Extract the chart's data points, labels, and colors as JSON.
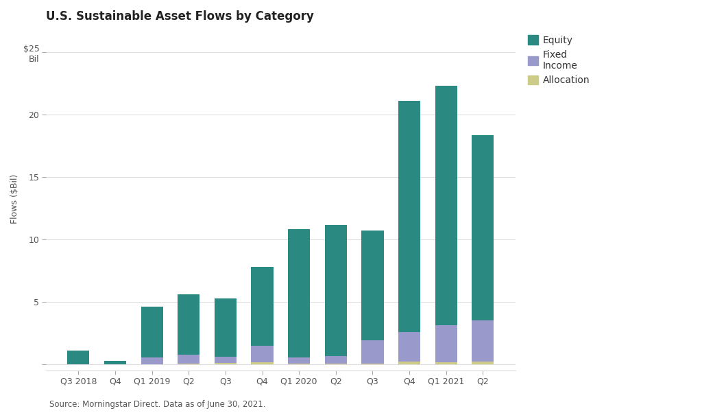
{
  "categories": [
    "Q3 2018",
    "Q4",
    "Q1 2019",
    "Q2",
    "Q3",
    "Q4",
    "Q1 2020",
    "Q2",
    "Q3",
    "Q4",
    "Q1 2021",
    "Q2"
  ],
  "equity": [
    1.1,
    0.3,
    4.1,
    4.85,
    4.7,
    6.3,
    10.3,
    10.5,
    8.8,
    18.5,
    19.2,
    14.9
  ],
  "fixed_income": [
    0.0,
    0.0,
    0.55,
    0.7,
    0.5,
    1.35,
    0.5,
    0.6,
    1.9,
    2.4,
    3.0,
    3.3
  ],
  "allocation": [
    0.0,
    0.0,
    0.0,
    0.05,
    0.1,
    0.15,
    0.05,
    0.05,
    0.05,
    0.2,
    0.15,
    0.2
  ],
  "equity_color": "#2a8a82",
  "fixed_income_color": "#9999cc",
  "allocation_color": "#cccc88",
  "bg_color": "#ffffff",
  "plot_bg_color": "#ffffff",
  "title": "U.S. Sustainable Asset Flows by Category",
  "ylabel": "Flows ($Bil)",
  "yticks": [
    0,
    5,
    10,
    15,
    20,
    25
  ],
  "ylim": [
    -0.5,
    27
  ],
  "source_text": "Source: Morningstar Direct. Data as of June 30, 2021.",
  "title_fontsize": 12,
  "label_fontsize": 9,
  "tick_fontsize": 9,
  "legend_fontsize": 10
}
